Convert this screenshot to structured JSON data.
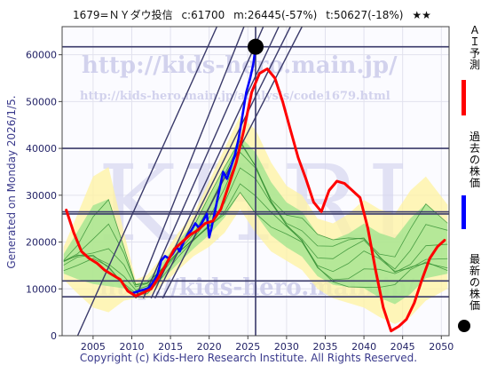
{
  "header": {
    "code_name": "1679=ＮＹダウ投信",
    "current": "c:61700",
    "max_info": "m:26445(-57%)",
    "target_info": "t:50627(-18%)",
    "stars": "★★"
  },
  "side_label": "Generated on Monday 2026/1/5.",
  "footer": "Copyright (c) Kids-Hero Research Institute. All Rights Reserved.",
  "watermarks": {
    "url1": "http://kids-hero.main.jp/",
    "url2": "http://kids-hero.main.jp/analysis/code1679.html",
    "big": "KHRI",
    "url3": "http://kids-hero.main.jp/"
  },
  "legend": [
    {
      "label": "ＡＩ予測",
      "color": "#ff0000",
      "kind": "bar"
    },
    {
      "label": "過去の株価",
      "color": "#0000ff",
      "kind": "bar"
    },
    {
      "label": "最新の株価",
      "color": "#000000",
      "kind": "dot"
    }
  ],
  "colors": {
    "plot_bg": "#fbfbff",
    "ai_line": "#ff0000",
    "past_line": "#0000ff",
    "band_yellow": "#fff3a0",
    "band_green": "#96e28a",
    "pred_line": "#2e8b2e",
    "ref_line": "#3a3a6a",
    "axis_text": "#222266",
    "footer_text": "#3a3a8c"
  },
  "chart_data": {
    "type": "line",
    "xlim": [
      2001,
      2051
    ],
    "ylim": [
      0,
      66000
    ],
    "xticks": [
      2005,
      2010,
      2015,
      2020,
      2025,
      2030,
      2035,
      2040,
      2045,
      2050
    ],
    "yticks": [
      0,
      10000,
      20000,
      30000,
      40000,
      50000,
      60000
    ],
    "ytick_labels": [
      "0",
      "10000",
      "20000",
      "30000",
      "40000",
      "50000",
      "60000"
    ],
    "latest_point": {
      "x": 2026.0,
      "y": 61700
    },
    "horizontal_refs": [
      61700,
      40000,
      26445,
      26000,
      11700,
      8300
    ],
    "vertical_ref": 2026.0,
    "diagonal_trend_lines": [
      {
        "x": [
          2010.5,
          2024.5
        ],
        "y": [
          8000,
          66000
        ]
      },
      {
        "x": [
          2011.5,
          2027.0
        ],
        "y": [
          8000,
          66000
        ]
      },
      {
        "x": [
          2012.5,
          2029.0
        ],
        "y": [
          8000,
          66000
        ]
      },
      {
        "x": [
          2013.0,
          2030.5
        ],
        "y": [
          8000,
          66000
        ]
      },
      {
        "x": [
          2014.0,
          2032.0
        ],
        "y": [
          8000,
          66000
        ]
      },
      {
        "x": [
          2003.0,
          2021.0
        ],
        "y": [
          0,
          66000
        ]
      }
    ],
    "series": [
      {
        "name": "過去の株価",
        "x": [
          2010.0,
          2010.8,
          2011.5,
          2012.2,
          2012.8,
          2013.3,
          2013.8,
          2014.3,
          2014.8,
          2015.3,
          2015.8,
          2016.2,
          2016.7,
          2017.2,
          2017.7,
          2018.2,
          2018.7,
          2019.2,
          2019.7,
          2020.0,
          2020.3,
          2020.8,
          2021.3,
          2021.8,
          2022.3,
          2022.8,
          2023.3,
          2023.8,
          2024.3,
          2024.8,
          2025.3,
          2025.7,
          2026.0
        ],
        "y": [
          9000,
          9500,
          9800,
          10200,
          11500,
          13000,
          16000,
          17000,
          16500,
          17500,
          19000,
          18000,
          20000,
          21500,
          22500,
          24000,
          23000,
          24500,
          26000,
          21000,
          23000,
          27000,
          31000,
          35000,
          33500,
          36000,
          38500,
          42000,
          47000,
          52000,
          55000,
          58000,
          61700
        ]
      },
      {
        "name": "ＡＩ予測",
        "x": [
          2001.5,
          2002.5,
          2003.5,
          2004.5,
          2005.5,
          2006.5,
          2007.5,
          2008.5,
          2009.5,
          2010.5,
          2011.5,
          2012.5,
          2013.5,
          2014.5,
          2015.5,
          2016.5,
          2017.5,
          2018.5,
          2019.5,
          2020.5,
          2021.5,
          2022.5,
          2023.5,
          2024.5,
          2025.5,
          2026.5,
          2027.5,
          2028.5,
          2029.5,
          2030.5,
          2031.5,
          2032.5,
          2033.5,
          2034.5,
          2035.5,
          2036.5,
          2037.5,
          2038.5,
          2039.5,
          2040.5,
          2041.5,
          2042.5,
          2043.5,
          2044.5,
          2045.5,
          2046.5,
          2047.5,
          2048.5,
          2049.5,
          2050.5
        ],
        "y": [
          27000,
          22000,
          18000,
          16500,
          15500,
          14000,
          13000,
          12000,
          9500,
          8500,
          9200,
          10000,
          12500,
          15500,
          18500,
          20000,
          21500,
          22500,
          24000,
          24500,
          27000,
          32000,
          37000,
          44000,
          52000,
          56000,
          57000,
          55000,
          50000,
          44000,
          38000,
          33500,
          28500,
          26500,
          31000,
          33000,
          32500,
          31000,
          29500,
          23000,
          14000,
          6000,
          1000,
          2000,
          3500,
          7000,
          12000,
          16500,
          19000,
          20500
        ]
      }
    ]
  }
}
